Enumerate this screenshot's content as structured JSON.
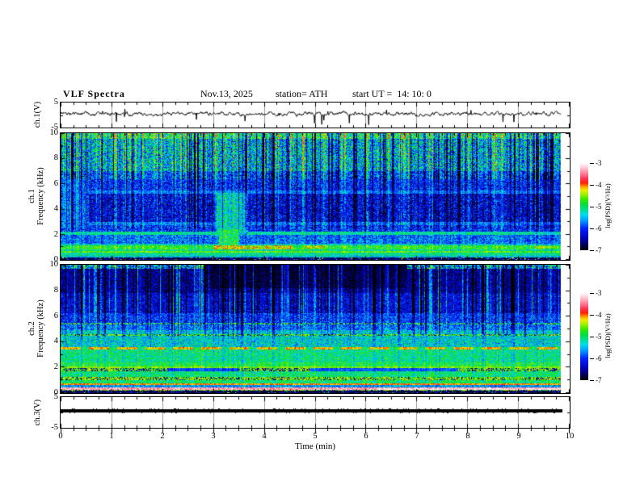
{
  "header": {
    "title": "VLF Spectra",
    "date": "Nov.13, 2025",
    "station": "station= ATH",
    "start_ut": "start UT =  14: 10: 0"
  },
  "axes": {
    "time_label": "Time (min)",
    "x_ticks": [
      "0",
      "1",
      "2",
      "3",
      "4",
      "5",
      "6",
      "7",
      "8",
      "9",
      "10"
    ],
    "wave_y_ticks": [
      "5",
      "-5"
    ],
    "spec_y_ticks": [
      "10",
      "8",
      "6",
      "4",
      "2",
      "0"
    ],
    "ch1_wave_label": "ch.1(V)",
    "ch1_spec_label_line1": "ch.1",
    "ch1_spec_label_line2": "Frequency (kHz)",
    "ch2_spec_label_line1": "ch.2",
    "ch2_spec_label_line2": "Frequency (kHz)",
    "ch3_wave_label": "ch.3(V)"
  },
  "colorbar": {
    "ticks": [
      "-3",
      "-4",
      "-5",
      "-6",
      "-7"
    ],
    "label": "log(PSD)(V²/Hz)",
    "value_range": [
      -7,
      -3
    ],
    "stops": [
      {
        "t": 0.0,
        "c": "#000000"
      },
      {
        "t": 0.06,
        "c": "#000055"
      },
      {
        "t": 0.14,
        "c": "#0000bb"
      },
      {
        "t": 0.25,
        "c": "#0022ff"
      },
      {
        "t": 0.33,
        "c": "#0090ff"
      },
      {
        "t": 0.41,
        "c": "#00ddee"
      },
      {
        "t": 0.47,
        "c": "#00dd88"
      },
      {
        "t": 0.52,
        "c": "#00dd44"
      },
      {
        "t": 0.58,
        "c": "#33e800"
      },
      {
        "t": 0.64,
        "c": "#9ef000"
      },
      {
        "t": 0.69,
        "c": "#eeee00"
      },
      {
        "t": 0.73,
        "c": "#ff9900"
      },
      {
        "t": 0.77,
        "c": "#ff2200"
      },
      {
        "t": 0.82,
        "c": "#ff3355"
      },
      {
        "t": 0.88,
        "c": "#ff7f99"
      },
      {
        "t": 0.94,
        "c": "#ffc2cc"
      },
      {
        "t": 1.0,
        "c": "#ffffff"
      }
    ]
  },
  "chart_data": [
    {
      "id": "ch1_waveform",
      "type": "line",
      "ylabel": "ch.1(V)",
      "xlim": [
        0,
        10
      ],
      "ylim": [
        -5,
        5
      ],
      "x_unit": "min",
      "data_end_min": 9.82,
      "seed": 421113,
      "signal": {
        "mean": 0.3,
        "noise_amp": 0.9,
        "smooth": 0.8,
        "spike_down_rate": 0.013,
        "spike_down_min": 1.2,
        "spike_down_max": 4.2,
        "spike_up_rate": 0.007,
        "spike_up_min": 0.8,
        "spike_up_max": 2.0
      },
      "gridline_minutes": [
        1,
        2,
        3,
        4,
        5,
        6,
        7,
        8,
        9
      ]
    },
    {
      "id": "ch1_spectrogram",
      "type": "heatmap",
      "ylabel": "ch.1 Frequency (kHz)",
      "freq_range": [
        0,
        10
      ],
      "time_range": [
        0,
        10
      ],
      "data_end_min": 9.82,
      "value_range_log_psd": [
        -7,
        -3
      ],
      "seed": 1113,
      "streaks": {
        "count": 270,
        "max_width": 3,
        "min_depth": 0.4,
        "max_depth": 1.9,
        "bright_fraction": 0.4
      },
      "streak_zones": [
        {
          "f": [
            6.4,
            10.01
          ],
          "s": 1.0
        },
        {
          "f": [
            2.5,
            6.4
          ],
          "s": 0.5
        },
        {
          "f": [
            0.7,
            2.5
          ],
          "s": 0.22
        },
        {
          "f": [
            0,
            0.7
          ],
          "s": 0.08
        }
      ],
      "bands": [
        {
          "f": [
            9.55,
            10.01
          ],
          "v": -5.0,
          "n": 0.7,
          "speckle": {
            "p": 0.05,
            "vmin": -4.4,
            "vmax": -3.8
          }
        },
        {
          "f": [
            7.0,
            9.55
          ],
          "v": -5.45,
          "n": 0.8
        },
        {
          "f": [
            6.4,
            7.0
          ],
          "v": -5.9,
          "n": 0.6
        },
        {
          "f": [
            5.45,
            6.4
          ],
          "v": -6.05,
          "n": 0.55
        },
        {
          "f": [
            5.25,
            5.45
          ],
          "v": -5.7,
          "n": 0.35
        },
        {
          "f": [
            3.0,
            5.25
          ],
          "v": -6.25,
          "n": 0.6
        },
        {
          "f": [
            2.75,
            3.0
          ],
          "v": -5.7,
          "n": 0.45
        },
        {
          "f": [
            2.25,
            2.75
          ],
          "v": -6.0,
          "n": 0.55
        },
        {
          "f": [
            1.95,
            2.25
          ],
          "v": -5.15,
          "n": 0.4
        },
        {
          "f": [
            1.3,
            1.95
          ],
          "v": -5.75,
          "n": 0.55
        },
        {
          "f": [
            1.15,
            1.3
          ],
          "v": -5.3,
          "n": 0.45
        },
        {
          "f": [
            0.85,
            1.15
          ],
          "v": -4.75,
          "n": 0.4
        },
        {
          "f": [
            0.7,
            0.85
          ],
          "v": -5.1,
          "n": 0.4
        },
        {
          "f": [
            0.55,
            0.7
          ],
          "v": -4.6,
          "n": 0.35
        },
        {
          "f": [
            0.3,
            0.55
          ],
          "v": -5.15,
          "n": 0.45
        },
        {
          "f": [
            0.18,
            0.3
          ],
          "v": -5.4,
          "n": 0.5
        },
        {
          "f": [
            0,
            0.18
          ],
          "v": -6.7,
          "n": 0.6,
          "speckle": {
            "p": 0.1,
            "vmin": -5.6,
            "vmax": -3.6
          }
        }
      ],
      "blobs": [
        {
          "t": [
            0,
            0.55
          ],
          "f": [
            2.5,
            6.5
          ],
          "v": -5.75,
          "n": 0.5
        },
        {
          "t": [
            3.05,
            3.65
          ],
          "f": [
            1.9,
            5.3
          ],
          "v": -5.3,
          "n": 0.55
        },
        {
          "t": [
            3.1,
            3.5
          ],
          "f": [
            1.0,
            2.4
          ],
          "v": -4.95,
          "n": 0.5
        },
        {
          "t": [
            3.0,
            4.55
          ],
          "f": [
            0.85,
            1.15
          ],
          "v": -4.25,
          "n": 0.45
        },
        {
          "t": [
            4.8,
            5.15
          ],
          "f": [
            0.9,
            1.12
          ],
          "v": -4.3,
          "n": 0.4
        },
        {
          "t": [
            9.3,
            9.7
          ],
          "f": [
            0.88,
            1.1
          ],
          "v": -4.35,
          "n": 0.4
        }
      ]
    },
    {
      "id": "ch2_spectrogram",
      "type": "heatmap",
      "ylabel": "ch.2 Frequency (kHz)",
      "freq_range": [
        0,
        10
      ],
      "time_range": [
        0,
        10
      ],
      "data_end_min": 9.82,
      "value_range_log_psd": [
        -7,
        -3
      ],
      "seed": 2025,
      "streaks": {
        "count": 230,
        "max_width": 3,
        "min_depth": 0.4,
        "max_depth": 1.8,
        "bright_fraction": 0.5
      },
      "streak_zones": [
        {
          "f": [
            6.2,
            10.01
          ],
          "s": 1.0
        },
        {
          "f": [
            4.4,
            6.2
          ],
          "s": 0.5
        },
        {
          "f": [
            0.75,
            4.4
          ],
          "s": 0.18
        },
        {
          "f": [
            0,
            0.75
          ],
          "s": 0.06
        }
      ],
      "bands": [
        {
          "f": [
            9.7,
            10.01
          ],
          "v": -5.6,
          "n": 0.9
        },
        {
          "f": [
            7.8,
            9.7
          ],
          "v": -6.55,
          "n": 0.45
        },
        {
          "f": [
            6.2,
            7.8
          ],
          "v": -6.3,
          "n": 0.5
        },
        {
          "f": [
            5.5,
            6.2
          ],
          "v": -6.0,
          "n": 0.5
        },
        {
          "f": [
            5.35,
            5.5
          ],
          "v": -5.0,
          "n": 0.7,
          "dither": 0.3
        },
        {
          "f": [
            4.9,
            5.35
          ],
          "v": -5.8,
          "n": 0.5
        },
        {
          "f": [
            4.6,
            4.9
          ],
          "v": -5.45,
          "n": 0.5
        },
        {
          "f": [
            4.45,
            4.6
          ],
          "v": -4.75,
          "n": 0.5,
          "dither": 0.25
        },
        {
          "f": [
            3.6,
            4.45
          ],
          "v": -5.35,
          "n": 0.55
        },
        {
          "f": [
            3.42,
            3.6
          ],
          "v": -4.15,
          "n": 0.3,
          "dash": {
            "period": 0.55,
            "duty": 0.72,
            "gap_v": -5.0
          }
        },
        {
          "f": [
            2.4,
            3.42
          ],
          "v": -5.1,
          "n": 0.5
        },
        {
          "f": [
            2.05,
            2.4
          ],
          "v": -4.9,
          "n": 0.45
        },
        {
          "f": [
            1.98,
            2.05
          ],
          "v": -4.5,
          "n": 0.3
        },
        {
          "f": [
            1.7,
            1.98
          ],
          "v": -4.6,
          "n": 0.5,
          "dither": 0.35
        },
        {
          "f": [
            1.25,
            1.7
          ],
          "v": -5.05,
          "n": 0.45
        },
        {
          "f": [
            1.0,
            1.25
          ],
          "v": -4.55,
          "n": 0.4,
          "dither": 0.2
        },
        {
          "f": [
            0.75,
            1.0
          ],
          "v": -5.0,
          "n": 0.4
        },
        {
          "f": [
            0.6,
            0.75
          ],
          "v": -4.05,
          "n": 0.3
        },
        {
          "f": [
            0.42,
            0.6
          ],
          "v": -5.6,
          "n": 0.5
        },
        {
          "f": [
            0.24,
            0.42
          ],
          "v": -3.35,
          "n": 0.35
        },
        {
          "f": [
            0.16,
            0.24
          ],
          "v": -4.5,
          "n": 0.5,
          "dither": 0.3
        },
        {
          "f": [
            0,
            0.16
          ],
          "v": -6.8,
          "n": 0.7,
          "speckle": {
            "p": 0.07,
            "vmin": -5.8,
            "vmax": -4.2
          }
        }
      ],
      "blobs": [
        {
          "t": [
            2.1,
            3.5
          ],
          "f": [
            1.7,
            1.98
          ],
          "v": -5.9,
          "n": 0.3
        },
        {
          "t": [
            4.9,
            7.8
          ],
          "f": [
            1.72,
            1.96
          ],
          "v": -5.85,
          "n": 0.3
        },
        {
          "t": [
            6.2,
            9.82
          ],
          "f": [
            0.26,
            0.4
          ],
          "v": -3.15,
          "n": 0.25
        },
        {
          "t": [
            2.8,
            6.8
          ],
          "f": [
            8.2,
            10.01
          ],
          "v": -6.8,
          "n": 0.35
        }
      ]
    },
    {
      "id": "ch3_waveform",
      "type": "line",
      "ylabel": "ch.3(V)",
      "xlim": [
        0,
        10
      ],
      "ylim": [
        -5,
        5
      ],
      "x_unit": "min",
      "data_end_min": 9.85,
      "seed": 777,
      "signal": {
        "constant": 0.3,
        "line_thickness_px": 4,
        "fuzz_rate": 0.12
      },
      "gridline_minutes": [
        1,
        2,
        3,
        4,
        5,
        6,
        7,
        8,
        9
      ]
    }
  ]
}
